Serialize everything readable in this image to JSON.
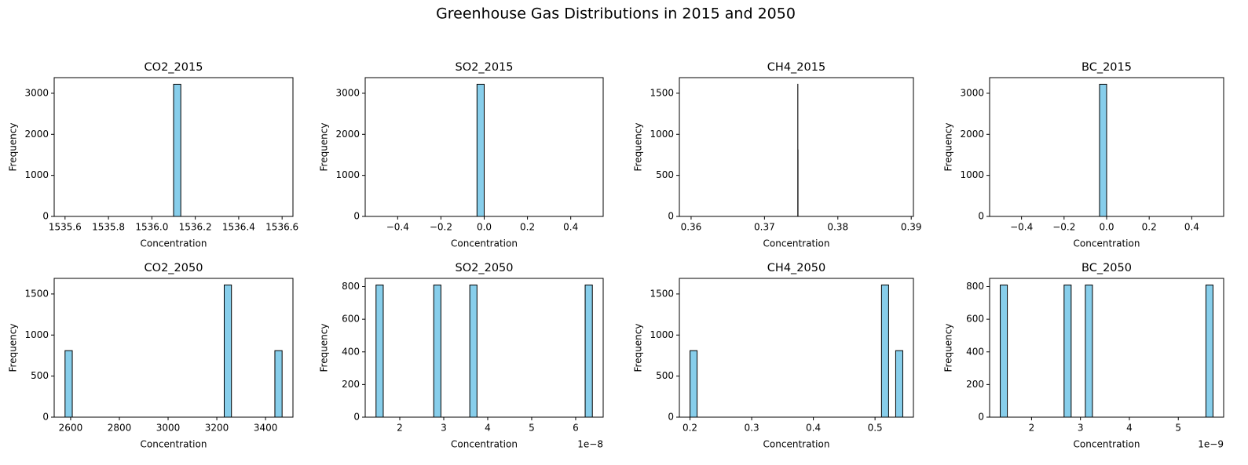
{
  "title": "Greenhouse Gas Distributions in 2015 and 2050",
  "chart_data": [
    {
      "type": "histogram",
      "title": "CO2_2015",
      "xlabel": "Concentration",
      "ylabel": "Frequency",
      "color": "#87ceeb",
      "edgecolor": "#000000",
      "bins": [
        1535.6,
        1535.6333,
        1535.6667,
        1535.7,
        1535.7333,
        1535.7667,
        1535.8,
        1535.8333,
        1535.8667,
        1535.9,
        1535.9333,
        1535.9667,
        1536.0,
        1536.0333,
        1536.0667,
        1536.1,
        1536.1333,
        1536.1667,
        1536.2,
        1536.2333,
        1536.2667,
        1536.3,
        1536.3333,
        1536.3667,
        1536.4,
        1536.4333,
        1536.4667,
        1536.5,
        1536.5333,
        1536.5667,
        1536.6
      ],
      "counts": [
        0,
        0,
        0,
        0,
        0,
        0,
        0,
        0,
        0,
        0,
        0,
        0,
        0,
        0,
        0,
        3220,
        0,
        0,
        0,
        0,
        0,
        0,
        0,
        0,
        0,
        0,
        0,
        0,
        0,
        0
      ],
      "xlim": [
        1535.55,
        1536.65
      ],
      "ylim": [
        0,
        3381
      ],
      "xticks": [
        1535.6,
        1535.8,
        {
          "value": 1536,
          "label": "1536.0"
        },
        1536.2,
        1536.4,
        1536.6
      ],
      "yticks": [
        0,
        1000,
        2000,
        3000
      ]
    },
    {
      "type": "histogram",
      "title": "SO2_2015",
      "xlabel": "Concentration",
      "ylabel": "Frequency",
      "color": "#87ceeb",
      "edgecolor": "#000000",
      "bins": [
        -0.5,
        -0.4667,
        -0.4333,
        -0.4,
        -0.3667,
        -0.3333,
        -0.3,
        -0.2667,
        -0.2333,
        -0.2,
        -0.1667,
        -0.1333,
        -0.1,
        -0.0667,
        -0.0333,
        0,
        0.0333,
        0.0667,
        0.1,
        0.1333,
        0.1667,
        0.2,
        0.2333,
        0.2667,
        0.3,
        0.3333,
        0.3667,
        0.4,
        0.4333,
        0.4667,
        0.5
      ],
      "counts": [
        0,
        0,
        0,
        0,
        0,
        0,
        0,
        0,
        0,
        0,
        0,
        0,
        0,
        0,
        3220,
        0,
        0,
        0,
        0,
        0,
        0,
        0,
        0,
        0,
        0,
        0,
        0,
        0,
        0,
        0
      ],
      "xlim": [
        -0.55,
        0.55
      ],
      "ylim": [
        0,
        3381
      ],
      "xticks": [
        {
          "value": -0.4,
          "label": "−0.4"
        },
        {
          "value": -0.2,
          "label": "−0.2"
        },
        {
          "value": 0,
          "label": "0.0"
        },
        0.2,
        0.4
      ],
      "yticks": [
        0,
        1000,
        2000,
        3000
      ]
    },
    {
      "type": "histogram",
      "title": "CH4_2015",
      "xlabel": "Concentration",
      "ylabel": "Frequency",
      "color": "#87ceeb",
      "edgecolor": "#000000",
      "bins": [
        0.3744,
        0.37441,
        0.37442,
        0.37443,
        0.37444,
        0.37445,
        0.37446,
        0.37447,
        0.37448,
        0.37449,
        0.3745,
        0.37451,
        0.37452,
        0.37453,
        0.37454,
        0.37455,
        0.37456,
        0.37457,
        0.37458,
        0.37459,
        0.3746,
        0.37461,
        0.37462,
        0.37463,
        0.37464,
        0.37465,
        0.37466,
        0.37467,
        0.37468,
        0.37469,
        0.3747
      ],
      "counts": [
        0,
        0,
        0,
        0,
        0,
        0,
        0,
        0,
        0,
        0,
        0,
        0,
        0,
        0,
        1610,
        0,
        810,
        0,
        0,
        0,
        0,
        0,
        0,
        0,
        0,
        0,
        0,
        0,
        0,
        0
      ],
      "xlim": [
        0.3584,
        0.3903
      ],
      "ylim": [
        0,
        1690
      ],
      "xticks": [
        0.36,
        0.37,
        0.38,
        0.39
      ],
      "yticks": [
        0,
        500,
        1000,
        1500
      ]
    },
    {
      "type": "histogram",
      "title": "BC_2015",
      "xlabel": "Concentration",
      "ylabel": "Frequency",
      "color": "#87ceeb",
      "edgecolor": "#000000",
      "bins": [
        -0.5,
        -0.4667,
        -0.4333,
        -0.4,
        -0.3667,
        -0.3333,
        -0.3,
        -0.2667,
        -0.2333,
        -0.2,
        -0.1667,
        -0.1333,
        -0.1,
        -0.0667,
        -0.0333,
        0,
        0.0333,
        0.0667,
        0.1,
        0.1333,
        0.1667,
        0.2,
        0.2333,
        0.2667,
        0.3,
        0.3333,
        0.3667,
        0.4,
        0.4333,
        0.4667,
        0.5
      ],
      "counts": [
        0,
        0,
        0,
        0,
        0,
        0,
        0,
        0,
        0,
        0,
        0,
        0,
        0,
        0,
        3220,
        0,
        0,
        0,
        0,
        0,
        0,
        0,
        0,
        0,
        0,
        0,
        0,
        0,
        0,
        0
      ],
      "xlim": [
        -0.55,
        0.55
      ],
      "ylim": [
        0,
        3381
      ],
      "xticks": [
        {
          "value": -0.4,
          "label": "−0.4"
        },
        {
          "value": -0.2,
          "label": "−0.2"
        },
        {
          "value": 0,
          "label": "0.0"
        },
        0.2,
        0.4
      ],
      "yticks": [
        0,
        1000,
        2000,
        3000
      ]
    },
    {
      "type": "histogram",
      "title": "CO2_2050",
      "xlabel": "Concentration",
      "ylabel": "Frequency",
      "color": "#87ceeb",
      "edgecolor": "#000000",
      "bins": [
        2577,
        2606.7,
        2636.4,
        2666.1,
        2695.8,
        2725.5,
        2755.2,
        2784.9,
        2814.6,
        2844.3,
        2874,
        2903.7,
        2933.4,
        2963.1,
        2992.8,
        3022.5,
        3052.2,
        3081.9,
        3111.6,
        3141.3,
        3171,
        3200.7,
        3230.4,
        3260.1,
        3289.8,
        3319.5,
        3349.2,
        3378.9,
        3408.6,
        3438.3,
        3468
      ],
      "counts": [
        810,
        0,
        0,
        0,
        0,
        0,
        0,
        0,
        0,
        0,
        0,
        0,
        0,
        0,
        0,
        0,
        0,
        0,
        0,
        0,
        0,
        0,
        1610,
        0,
        0,
        0,
        0,
        0,
        0,
        810
      ],
      "xlim": [
        2532.45,
        3512.55
      ],
      "ylim": [
        0,
        1690
      ],
      "xticks": [
        2600,
        2800,
        3000,
        3200,
        3400
      ],
      "yticks": [
        0,
        500,
        1000,
        1500
      ]
    },
    {
      "type": "histogram",
      "title": "SO2_2050",
      "xlabel": "Concentration",
      "ylabel": "Frequency",
      "x_offset_label": "1e−8",
      "color": "#87ceeb",
      "edgecolor": "#000000",
      "bins": [
        1.46,
        1.624,
        1.788,
        1.952,
        2.116,
        2.28,
        2.444,
        2.608,
        2.772,
        2.936,
        3.1,
        3.264,
        3.428,
        3.592,
        3.756,
        3.92,
        4.084,
        4.248,
        4.412,
        4.576,
        4.74,
        4.904,
        5.068,
        5.232,
        5.396,
        5.56,
        5.724,
        5.888,
        6.052,
        6.216,
        6.38
      ],
      "counts": [
        810,
        0,
        0,
        0,
        0,
        0,
        0,
        0,
        810,
        0,
        0,
        0,
        0,
        810,
        0,
        0,
        0,
        0,
        0,
        0,
        0,
        0,
        0,
        0,
        0,
        0,
        0,
        0,
        0,
        810
      ],
      "xlim": [
        1.214,
        6.626
      ],
      "ylim": [
        0,
        850.5
      ],
      "xticks": [
        2,
        3,
        4,
        5,
        6
      ],
      "yticks": [
        0,
        200,
        400,
        600,
        800
      ]
    },
    {
      "type": "histogram",
      "title": "CH4_2050",
      "xlabel": "Concentration",
      "ylabel": "Frequency",
      "color": "#87ceeb",
      "edgecolor": "#000000",
      "bins": [
        0.2,
        0.2115,
        0.223,
        0.2345,
        0.246,
        0.2575,
        0.269,
        0.2805,
        0.292,
        0.3035,
        0.315,
        0.3265,
        0.338,
        0.3495,
        0.361,
        0.3725,
        0.384,
        0.3955,
        0.407,
        0.4185,
        0.43,
        0.4415,
        0.453,
        0.4645,
        0.476,
        0.4875,
        0.499,
        0.5105,
        0.522,
        0.5335,
        0.545
      ],
      "counts": [
        810,
        0,
        0,
        0,
        0,
        0,
        0,
        0,
        0,
        0,
        0,
        0,
        0,
        0,
        0,
        0,
        0,
        0,
        0,
        0,
        0,
        0,
        0,
        0,
        0,
        0,
        0,
        1610,
        0,
        810
      ],
      "xlim": [
        0.18275,
        0.56225
      ],
      "ylim": [
        0,
        1690
      ],
      "xticks": [
        0.2,
        0.3,
        0.4,
        0.5
      ],
      "yticks": [
        0,
        500,
        1000,
        1500
      ]
    },
    {
      "type": "histogram",
      "title": "BC_2050",
      "xlabel": "Concentration",
      "ylabel": "Frequency",
      "x_offset_label": "1e−9",
      "color": "#87ceeb",
      "edgecolor": "#000000",
      "bins": [
        1.36,
        1.505,
        1.65,
        1.795,
        1.94,
        2.085,
        2.23,
        2.375,
        2.52,
        2.665,
        2.81,
        2.955,
        3.1,
        3.245,
        3.39,
        3.535,
        3.68,
        3.825,
        3.97,
        4.115,
        4.26,
        4.405,
        4.55,
        4.695,
        4.84,
        4.985,
        5.13,
        5.275,
        5.42,
        5.565,
        5.71
      ],
      "counts": [
        810,
        0,
        0,
        0,
        0,
        0,
        0,
        0,
        0,
        810,
        0,
        0,
        810,
        0,
        0,
        0,
        0,
        0,
        0,
        0,
        0,
        0,
        0,
        0,
        0,
        0,
        0,
        0,
        0,
        810
      ],
      "xlim": [
        1.1425,
        5.9275
      ],
      "ylim": [
        0,
        850.5
      ],
      "xticks": [
        2,
        3,
        4,
        5
      ],
      "yticks": [
        0,
        200,
        400,
        600,
        800
      ]
    }
  ]
}
